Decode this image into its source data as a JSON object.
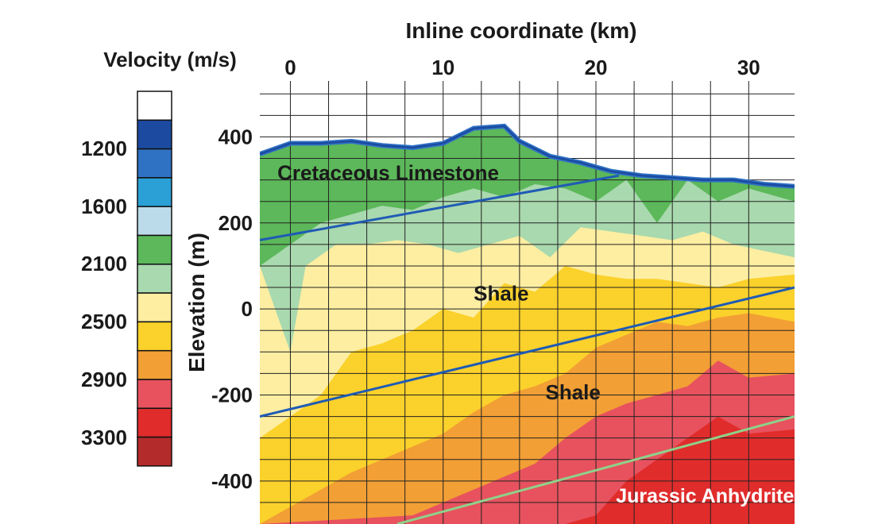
{
  "chart_data": {
    "type": "heatmap",
    "title": "",
    "xlabel": "Inline coordinate (km)",
    "ylabel": "Elevation (m)",
    "xlim": [
      -2,
      33
    ],
    "ylim": [
      -500,
      530
    ],
    "x_ticks": [
      0,
      10,
      20,
      30
    ],
    "y_ticks": [
      400,
      200,
      0,
      -200,
      -400
    ],
    "grid": true,
    "colorbar": {
      "title": "Velocity (m/s)",
      "tick_labels": [
        "1200",
        "1600",
        "2100",
        "2500",
        "2900",
        "3300"
      ],
      "colors": [
        "#ffffff",
        "#1b4aa0",
        "#2f72c4",
        "#2aa0d6",
        "#bcdbea",
        "#5cb85a",
        "#a9d9ae",
        "#fdeea2",
        "#fbd12b",
        "#f29f35",
        "#e7525e",
        "#e12c2c",
        "#b42b2b"
      ]
    },
    "annotations": [
      {
        "text": "Cretaceous Limestone",
        "x": 6.4,
        "y": 300
      },
      {
        "text": "Shale",
        "x": 13.8,
        "y": 20
      },
      {
        "text": "Shale",
        "x": 18.5,
        "y": -210
      },
      {
        "text": "Jurassic Anhydrites",
        "x": 27.5,
        "y": -450
      }
    ],
    "boundaries": [
      {
        "color": "#1f5bb5",
        "points": [
          [
            -2,
            160
          ],
          [
            21.5,
            310
          ]
        ]
      },
      {
        "color": "#1f5bb5",
        "points": [
          [
            -2,
            -250
          ],
          [
            33,
            50
          ]
        ]
      },
      {
        "color": "#8fd18a",
        "points": [
          [
            7,
            -500
          ],
          [
            33,
            -250
          ]
        ]
      }
    ],
    "surface": [
      [
        -2,
        360
      ],
      [
        0,
        385
      ],
      [
        2,
        385
      ],
      [
        4,
        390
      ],
      [
        6,
        380
      ],
      [
        8,
        375
      ],
      [
        10,
        385
      ],
      [
        12,
        420
      ],
      [
        14,
        425
      ],
      [
        15,
        390
      ],
      [
        17,
        355
      ],
      [
        19,
        340
      ],
      [
        21,
        320
      ],
      [
        23,
        310
      ],
      [
        25,
        305
      ],
      [
        27,
        300
      ],
      [
        29,
        300
      ],
      [
        31,
        290
      ],
      [
        33,
        285
      ]
    ],
    "velocity_layers": [
      {
        "velocity": 2100,
        "top": [
          [
            -2,
            360
          ],
          [
            0,
            385
          ],
          [
            2,
            385
          ],
          [
            4,
            390
          ],
          [
            6,
            380
          ],
          [
            8,
            375
          ],
          [
            10,
            385
          ],
          [
            12,
            420
          ],
          [
            14,
            425
          ],
          [
            15,
            390
          ],
          [
            17,
            355
          ],
          [
            19,
            340
          ],
          [
            21,
            320
          ],
          [
            23,
            310
          ],
          [
            25,
            305
          ],
          [
            27,
            300
          ],
          [
            29,
            300
          ],
          [
            31,
            290
          ],
          [
            33,
            285
          ]
        ]
      },
      {
        "velocity": 2300,
        "top": [
          [
            -2,
            100
          ],
          [
            0,
            150
          ],
          [
            2,
            200
          ],
          [
            4,
            220
          ],
          [
            6,
            240
          ],
          [
            8,
            230
          ],
          [
            10,
            260
          ],
          [
            12,
            280
          ],
          [
            14,
            260
          ],
          [
            16,
            290
          ],
          [
            18,
            280
          ],
          [
            20,
            250
          ],
          [
            22,
            300
          ],
          [
            24,
            200
          ],
          [
            26,
            300
          ],
          [
            28,
            250
          ],
          [
            30,
            280
          ],
          [
            33,
            250
          ]
        ]
      },
      {
        "velocity": 2500,
        "top": [
          [
            -2,
            100
          ],
          [
            0,
            -100
          ],
          [
            1,
            100
          ],
          [
            3,
            150
          ],
          [
            5,
            150
          ],
          [
            7,
            160
          ],
          [
            9,
            150
          ],
          [
            11,
            130
          ],
          [
            13,
            150
          ],
          [
            15,
            170
          ],
          [
            17,
            120
          ],
          [
            19,
            190
          ],
          [
            21,
            180
          ],
          [
            23,
            170
          ],
          [
            25,
            160
          ],
          [
            27,
            180
          ],
          [
            29,
            150
          ],
          [
            33,
            120
          ]
        ]
      },
      {
        "velocity": 2700,
        "top": [
          [
            -2,
            -300
          ],
          [
            0,
            -250
          ],
          [
            2,
            -200
          ],
          [
            4,
            -100
          ],
          [
            6,
            -80
          ],
          [
            8,
            -50
          ],
          [
            10,
            0
          ],
          [
            12,
            -20
          ],
          [
            14,
            60
          ],
          [
            16,
            40
          ],
          [
            18,
            100
          ],
          [
            20,
            80
          ],
          [
            22,
            70
          ],
          [
            24,
            70
          ],
          [
            26,
            60
          ],
          [
            28,
            50
          ],
          [
            30,
            70
          ],
          [
            33,
            80
          ]
        ]
      },
      {
        "velocity": 2900,
        "top": [
          [
            -2,
            -500
          ],
          [
            2,
            -420
          ],
          [
            4,
            -380
          ],
          [
            6,
            -350
          ],
          [
            8,
            -320
          ],
          [
            10,
            -290
          ],
          [
            12,
            -240
          ],
          [
            14,
            -200
          ],
          [
            16,
            -180
          ],
          [
            18,
            -150
          ],
          [
            20,
            -90
          ],
          [
            22,
            -60
          ],
          [
            24,
            -30
          ],
          [
            26,
            -40
          ],
          [
            28,
            -20
          ],
          [
            30,
            -10
          ],
          [
            33,
            -30
          ]
        ]
      },
      {
        "velocity": 3100,
        "top": [
          [
            -2,
            -500
          ],
          [
            8,
            -480
          ],
          [
            10,
            -450
          ],
          [
            12,
            -420
          ],
          [
            14,
            -390
          ],
          [
            16,
            -360
          ],
          [
            18,
            -300
          ],
          [
            20,
            -250
          ],
          [
            22,
            -220
          ],
          [
            24,
            -200
          ],
          [
            26,
            -180
          ],
          [
            28,
            -120
          ],
          [
            30,
            -160
          ],
          [
            33,
            -150
          ]
        ]
      },
      {
        "velocity": 3300,
        "top": [
          [
            -2,
            -500
          ],
          [
            18,
            -500
          ],
          [
            20,
            -480
          ],
          [
            22,
            -400
          ],
          [
            24,
            -350
          ],
          [
            26,
            -300
          ],
          [
            28,
            -250
          ],
          [
            30,
            -290
          ],
          [
            33,
            -280
          ]
        ]
      }
    ]
  }
}
